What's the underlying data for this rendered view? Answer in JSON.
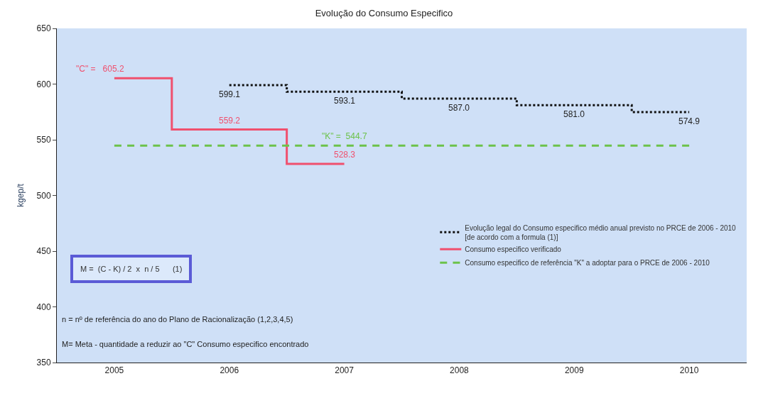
{
  "chart_data": {
    "type": "step",
    "title": "Evolução do Consumo Especifico",
    "ylabel": "kgep/t",
    "categories": [
      "2005",
      "2006",
      "2007",
      "2008",
      "2009",
      "2010"
    ],
    "series": [
      {
        "name": "Evolução legal do Consumo especifico médio anual previsto no PRCE de 2006 - 2010\n[de acordo com a formula (1)]",
        "color": "#111111",
        "line_style": "dotted",
        "values": [
          null,
          599.1,
          593.1,
          587.0,
          581.0,
          574.9
        ],
        "value_labels": [
          null,
          "599.1",
          "593.1",
          "587.0",
          "581.0",
          "574.9"
        ]
      },
      {
        "name": "Consumo especifico verificado",
        "color": "#f0506e",
        "line_style": "solid",
        "values": [
          605.2,
          559.2,
          528.3,
          null,
          null,
          null
        ],
        "value_labels": [
          "\"C\" =   605.2",
          "559.2",
          "528.3",
          null,
          null,
          null
        ]
      },
      {
        "name": "Consumo especifico de referência \"K\" a adoptar para o PRCE de 2006 - 2010",
        "color": "#6cc24a",
        "line_style": "dashed",
        "values": [
          544.7,
          544.7,
          544.7,
          544.7,
          544.7,
          544.7
        ],
        "value_labels": [
          null,
          null,
          "\"K\" =  544.7",
          null,
          null,
          null
        ]
      }
    ],
    "ylim": [
      350,
      650
    ],
    "yticks": [
      350,
      400,
      450,
      500,
      550,
      600,
      650
    ],
    "grid": false,
    "legend": "bottom right",
    "marker": "none",
    "annotations": [
      "M =  (C - K) / 2  x  n / 5      (1)",
      "n = nº de referência do ano do Plano de Racionalização (1,2,3,4,5)",
      "M= Meta - quantidade a reduzir ao \"C\" Consumo especifico encontrado"
    ]
  }
}
